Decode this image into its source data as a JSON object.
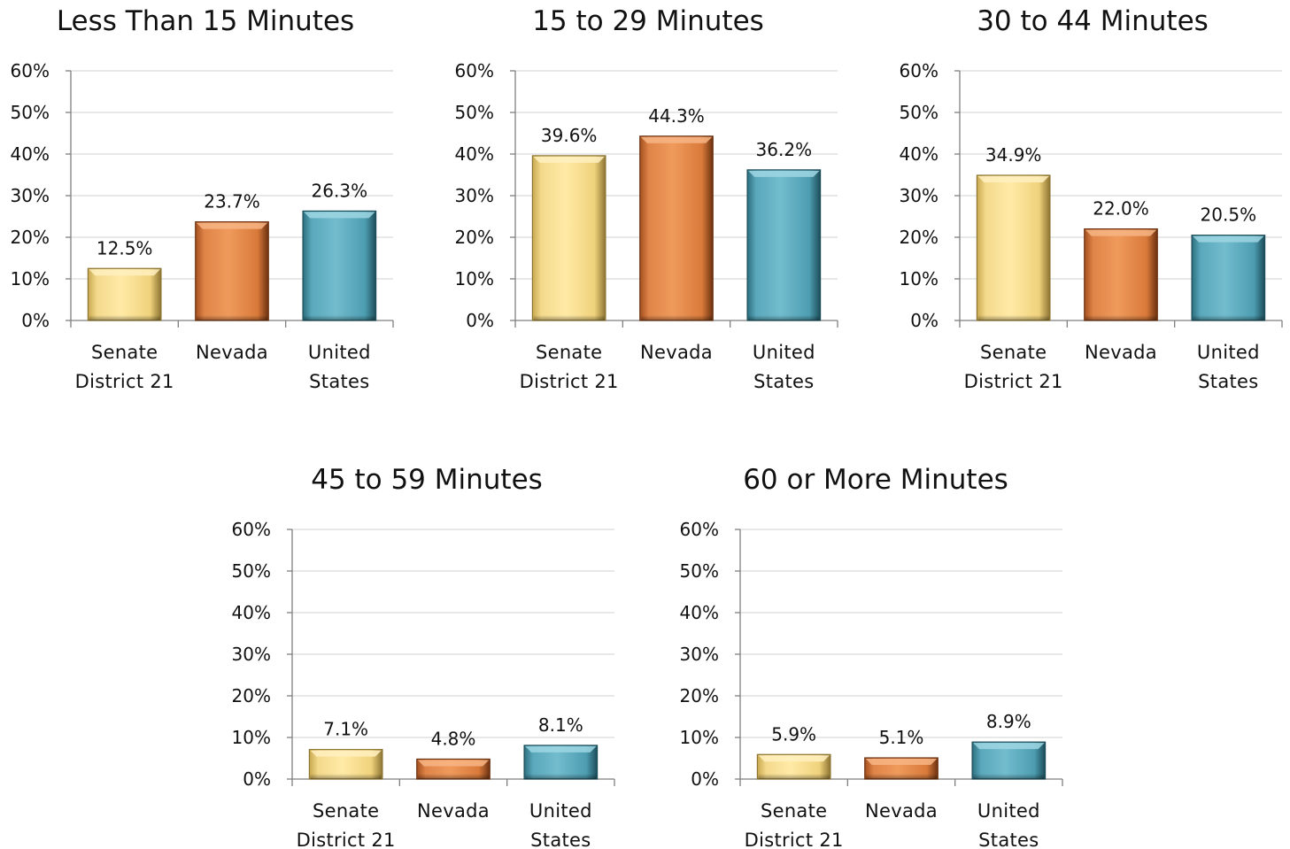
{
  "chart_data": [
    {
      "type": "bar",
      "title": "Less Than 15 Minutes",
      "categories": [
        "Senate District 21",
        "Nevada",
        "United States"
      ],
      "category_lines": [
        [
          "Senate",
          "District 21"
        ],
        [
          "Nevada"
        ],
        [
          "United",
          "States"
        ]
      ],
      "values": [
        12.5,
        23.7,
        26.3
      ],
      "value_labels": [
        "12.5%",
        "23.7%",
        "26.3%"
      ],
      "ylim": [
        0,
        60
      ],
      "yticks": [
        "0%",
        "10%",
        "20%",
        "30%",
        "40%",
        "50%",
        "60%"
      ],
      "xlabel": "",
      "ylabel": "",
      "grid": true
    },
    {
      "type": "bar",
      "title": "15 to 29 Minutes",
      "categories": [
        "Senate District 21",
        "Nevada",
        "United States"
      ],
      "category_lines": [
        [
          "Senate",
          "District 21"
        ],
        [
          "Nevada"
        ],
        [
          "United",
          "States"
        ]
      ],
      "values": [
        39.6,
        44.3,
        36.2
      ],
      "value_labels": [
        "39.6%",
        "44.3%",
        "36.2%"
      ],
      "ylim": [
        0,
        60
      ],
      "yticks": [
        "0%",
        "10%",
        "20%",
        "30%",
        "40%",
        "50%",
        "60%"
      ],
      "xlabel": "",
      "ylabel": "",
      "grid": true
    },
    {
      "type": "bar",
      "title": "30 to 44 Minutes",
      "categories": [
        "Senate District 21",
        "Nevada",
        "United States"
      ],
      "category_lines": [
        [
          "Senate",
          "District 21"
        ],
        [
          "Nevada"
        ],
        [
          "United",
          "States"
        ]
      ],
      "values": [
        34.9,
        22.0,
        20.5
      ],
      "value_labels": [
        "34.9%",
        "22.0%",
        "20.5%"
      ],
      "ylim": [
        0,
        60
      ],
      "yticks": [
        "0%",
        "10%",
        "20%",
        "30%",
        "40%",
        "50%",
        "60%"
      ],
      "xlabel": "",
      "ylabel": "",
      "grid": true
    },
    {
      "type": "bar",
      "title": "45 to 59 Minutes",
      "categories": [
        "Senate District 21",
        "Nevada",
        "United States"
      ],
      "category_lines": [
        [
          "Senate",
          "District 21"
        ],
        [
          "Nevada"
        ],
        [
          "United",
          "States"
        ]
      ],
      "values": [
        7.1,
        4.8,
        8.1
      ],
      "value_labels": [
        "7.1%",
        "4.8%",
        "8.1%"
      ],
      "ylim": [
        0,
        60
      ],
      "yticks": [
        "0%",
        "10%",
        "20%",
        "30%",
        "40%",
        "50%",
        "60%"
      ],
      "xlabel": "",
      "ylabel": "",
      "grid": true
    },
    {
      "type": "bar",
      "title": "60 or More Minutes",
      "categories": [
        "Senate District 21",
        "Nevada",
        "United States"
      ],
      "category_lines": [
        [
          "Senate",
          "District 21"
        ],
        [
          "Nevada"
        ],
        [
          "United",
          "States"
        ]
      ],
      "values": [
        5.9,
        5.1,
        8.9
      ],
      "value_labels": [
        "5.9%",
        "5.1%",
        "8.9%"
      ],
      "ylim": [
        0,
        60
      ],
      "yticks": [
        "0%",
        "10%",
        "20%",
        "30%",
        "40%",
        "50%",
        "60%"
      ],
      "xlabel": "",
      "ylabel": "",
      "grid": true
    }
  ],
  "colors": {
    "senate_district": "#f5d77a",
    "nevada": "#d9783a",
    "united_states": "#4a9db0"
  }
}
